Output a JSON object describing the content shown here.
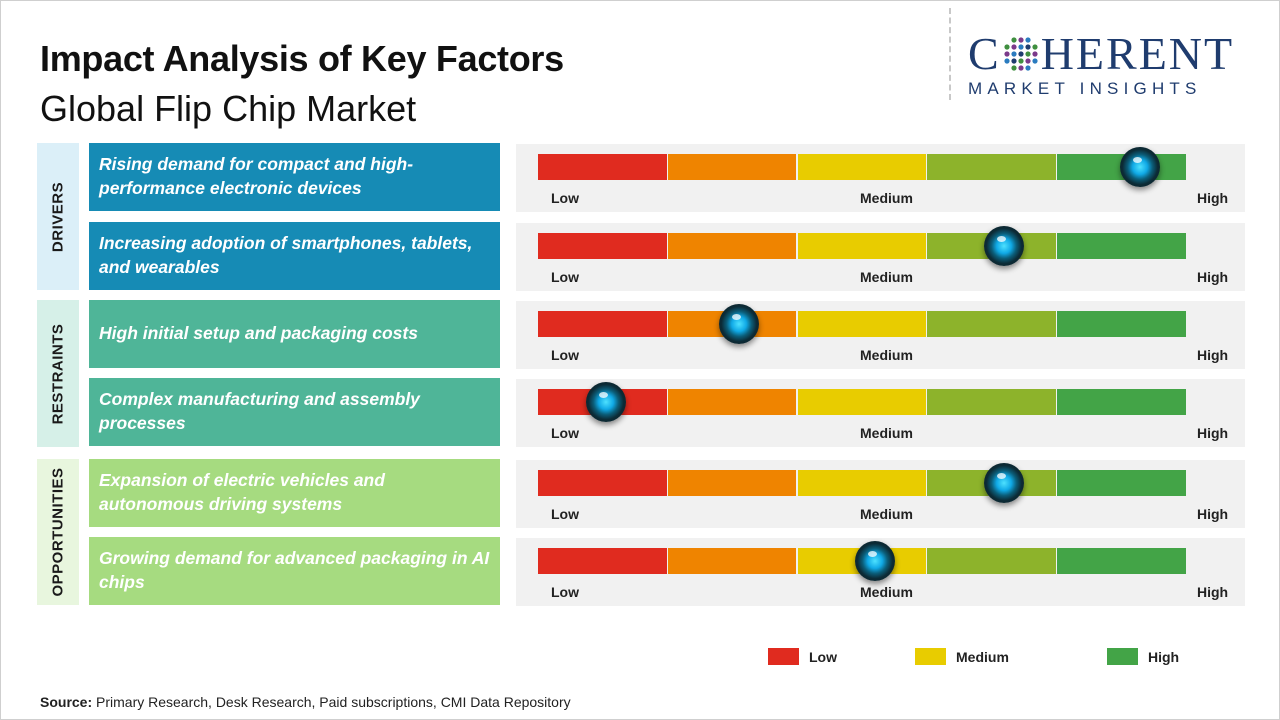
{
  "title": "Impact Analysis of Key Factors",
  "subtitle": "Global Flip Chip Market",
  "logo": {
    "main_left": "C",
    "main_right": "HERENT",
    "sub": "MARKET INSIGHTS"
  },
  "scale": {
    "low": "Low",
    "medium": "Medium",
    "high": "High"
  },
  "segment_colors": [
    "#e02b1f",
    "#ef8400",
    "#e8cc00",
    "#8db32b",
    "#43a447"
  ],
  "categories": [
    {
      "name": "DRIVERS",
      "bg": "#dbeff8"
    },
    {
      "name": "RESTRAINTS",
      "bg": "#d6f0e8"
    },
    {
      "name": "OPPORTUNITIES",
      "bg": "#e8f6de"
    }
  ],
  "factors": [
    {
      "text": "Rising demand for compact and high-performance electronic devices",
      "color": "#168bb5",
      "impact": 0.93
    },
    {
      "text": "Increasing adoption of smartphones, tablets, and wearables",
      "color": "#168bb5",
      "impact": 0.72
    },
    {
      "text": "High initial setup and packaging costs",
      "color": "#4fb598",
      "impact": 0.31
    },
    {
      "text": "Complex manufacturing and assembly processes",
      "color": "#4fb598",
      "impact": 0.105
    },
    {
      "text": "Expansion of electric vehicles and autonomous driving systems",
      "color": "#a6db80",
      "impact": 0.72
    },
    {
      "text": "Growing demand for advanced packaging in AI chips",
      "color": "#a6db80",
      "impact": 0.52
    }
  ],
  "legend": [
    {
      "label": "Low",
      "color": "#e02b1f"
    },
    {
      "label": "Medium",
      "color": "#e8cc00"
    },
    {
      "label": "High",
      "color": "#43a447"
    }
  ],
  "source": {
    "label": "Source:",
    "text": " Primary Research, Desk Research, Paid subscriptions, CMI Data Repository"
  }
}
